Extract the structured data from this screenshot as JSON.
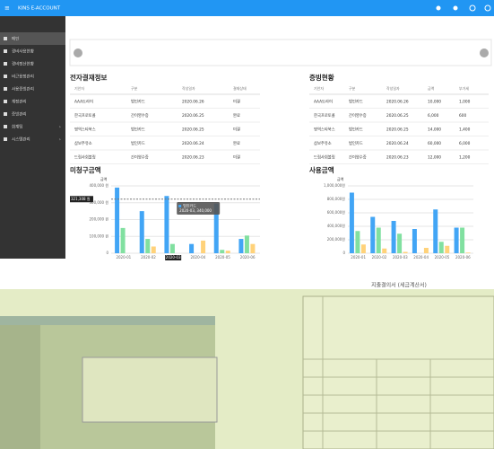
{
  "header": {
    "title": "KINS E-ACCOUNT"
  },
  "sidebar": [
    "메인",
    "경비사용현황",
    "경비정산현황",
    "비근용정관리",
    "사용증빙관리",
    "계정관리",
    "증빙관리",
    "회계팀",
    "시스템관리"
  ],
  "table1": {
    "title": "전자결재정보",
    "columns": [
      "기안자",
      "구분",
      "작성일자",
      "결재상태"
    ],
    "rows": [
      [
        "AAA트라이",
        "법인카드",
        "2020.06.26",
        "미결"
      ],
      [
        "한국프로토콜",
        "간이영수증",
        "2020.06.25",
        "완료"
      ],
      [
        "명역스타북스",
        "법인카드",
        "2020.06.25",
        "미결"
      ],
      [
        "삼보주유소",
        "법인카드",
        "2020.06.24",
        "완료"
      ],
      [
        "드림사회볼링",
        "간이영수증",
        "2020.06.23",
        "미결"
      ]
    ]
  },
  "table2": {
    "title": "증빙현황",
    "columns": [
      "기안자",
      "구분",
      "작성일자",
      "금액",
      "부가세"
    ],
    "rows": [
      [
        "AAA트라이",
        "법인카드",
        "2020.06.26",
        "10,000",
        "1,000"
      ],
      [
        "한국프로토콜",
        "간이영수증",
        "2020.06.25",
        "6,000",
        "600"
      ],
      [
        "명역스타북스",
        "법인카드",
        "2020.06.25",
        "14,000",
        "1,400"
      ],
      [
        "삼보주유소",
        "법인카드",
        "2020.06.24",
        "60,000",
        "6,000"
      ],
      [
        "드림사회볼링",
        "간이영수증",
        "2020.06.23",
        "12,000",
        "1,200"
      ]
    ]
  },
  "chart_data": [
    {
      "type": "bar",
      "title": "미청구금액",
      "y_label": "금액",
      "categories": [
        "2020-01",
        "2020-02",
        "2020-03",
        "2020-04",
        "2020-05",
        "2020-06"
      ],
      "series": [
        {
          "name": "법인카드",
          "color": "#42a5f5",
          "values": [
            390000,
            250000,
            340000,
            55000,
            295000,
            85000
          ]
        },
        {
          "color": "#81e0a0",
          "values": [
            150000,
            85000,
            55000,
            0,
            20000,
            105000
          ]
        },
        {
          "color": "#ffd27a",
          "values": [
            0,
            40000,
            0,
            75000,
            15000,
            55000
          ]
        }
      ],
      "ylim": [
        0,
        400000
      ],
      "yticks": [
        {
          "value": 0,
          "label": "0"
        },
        {
          "value": 100000,
          "label": "100,000 원"
        },
        {
          "value": 200000,
          "label": "200,000 원"
        },
        {
          "value": 300000,
          "label": "300,000 원"
        },
        {
          "value": 400000,
          "label": "400,000 원"
        }
      ],
      "highlight": {
        "value": 321308,
        "label": "321,308 원"
      },
      "tooltip": {
        "category": "2020-03",
        "text": "2020-03, 340,000"
      }
    },
    {
      "type": "bar",
      "title": "사용금액",
      "y_label": "금액",
      "categories": [
        "2020-01",
        "2020-02",
        "2020-03",
        "2020-04",
        "2020-05",
        "2020-06"
      ],
      "series": [
        {
          "color": "#42a5f5",
          "values": [
            900000,
            540000,
            480000,
            360000,
            650000,
            380000
          ]
        },
        {
          "color": "#81e0a0",
          "values": [
            330000,
            380000,
            290000,
            0,
            170000,
            380000
          ]
        },
        {
          "color": "#ffd27a",
          "values": [
            130000,
            70000,
            20000,
            80000,
            110000,
            10000
          ]
        }
      ],
      "ylim": [
        0,
        1000000
      ],
      "yticks": [
        {
          "value": 0,
          "label": "0"
        },
        {
          "value": 200000,
          "label": "200,000원"
        },
        {
          "value": 400000,
          "label": "400,000원"
        },
        {
          "value": 600000,
          "label": "600,000원"
        },
        {
          "value": 800000,
          "label": "800,000원"
        },
        {
          "value": 1000000,
          "label": "1,000,000원"
        }
      ]
    }
  ],
  "document": {
    "title": "지출결의서 (세금계산서)"
  }
}
